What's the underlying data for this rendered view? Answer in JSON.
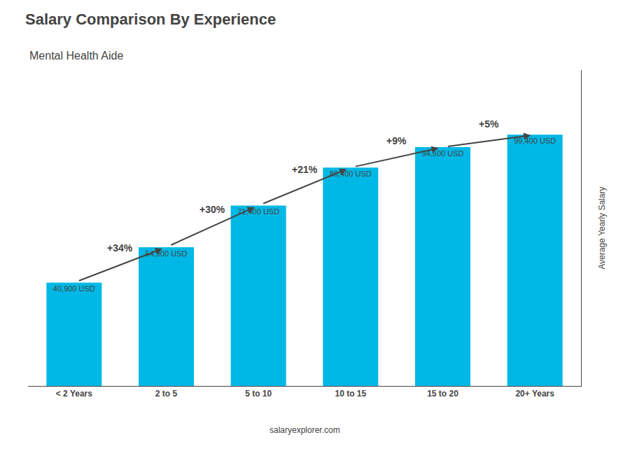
{
  "chart_data": {
    "type": "bar",
    "title": "Salary Comparison By Experience",
    "subtitle": "Mental Health Aide",
    "categories": [
      "< 2 Years",
      "2 to 5",
      "5 to 10",
      "10 to 15",
      "15 to 20",
      "20+ Years"
    ],
    "values": [
      40900,
      54900,
      71400,
      86400,
      94500,
      99400
    ],
    "value_labels": [
      "40,900 USD",
      "54,900 USD",
      "71,400 USD",
      "86,400 USD",
      "94,500 USD",
      "99,400 USD"
    ],
    "data_labels": true,
    "color": "#00b8e6",
    "ylim": [
      0,
      125000
    ],
    "tick_labels": "x",
    "grid": false,
    "ylabel": "Average Yearly Salary",
    "annotations": [
      "+34%",
      "+30%",
      "+21%",
      "+9%",
      "+5%"
    ],
    "footer": "salaryexplorer.com"
  }
}
